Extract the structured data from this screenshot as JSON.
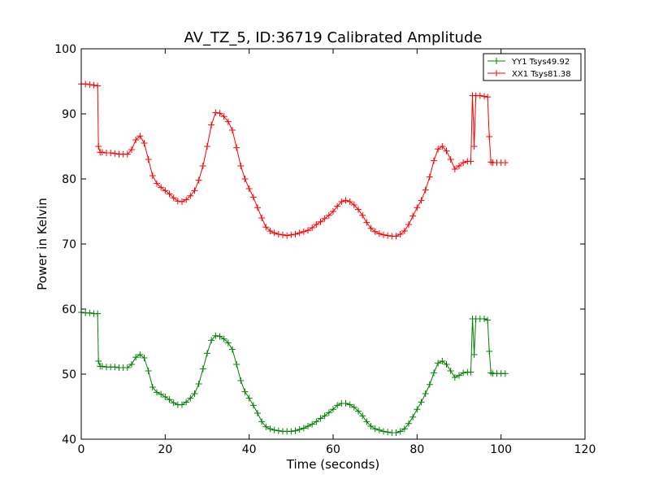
{
  "chart_data": {
    "type": "line",
    "title": "AV_TZ_5, ID:36719 Calibrated Amplitude",
    "xlabel": "Time (seconds)",
    "ylabel": "Power in Kelvin",
    "xlim": [
      0,
      120
    ],
    "ylim": [
      40,
      100
    ],
    "xticks": [
      0,
      20,
      40,
      60,
      80,
      100,
      120
    ],
    "yticks": [
      40,
      50,
      60,
      70,
      80,
      90,
      100
    ],
    "grid": false,
    "legend_position": "top-right",
    "marker": "plus",
    "series": [
      {
        "name": "YY1 Tsys49.92",
        "color": "#008000",
        "points": [
          [
            0,
            59.5
          ],
          [
            1,
            59.4
          ],
          [
            2,
            59.4
          ],
          [
            3,
            59.3
          ],
          [
            3.9,
            59.3
          ],
          [
            4.1,
            52
          ],
          [
            4.5,
            51.2
          ],
          [
            5,
            51.2
          ],
          [
            6,
            51.1
          ],
          [
            7,
            51.1
          ],
          [
            8,
            51.1
          ],
          [
            9,
            51
          ],
          [
            10,
            51
          ],
          [
            11,
            51
          ],
          [
            12,
            51.5
          ],
          [
            13,
            52.6
          ],
          [
            14,
            53
          ],
          [
            15,
            52.5
          ],
          [
            16,
            50.5
          ],
          [
            17,
            48
          ],
          [
            18,
            47.2
          ],
          [
            19,
            46.9
          ],
          [
            20,
            46.5
          ],
          [
            21,
            46.1
          ],
          [
            22,
            45.6
          ],
          [
            23,
            45.3
          ],
          [
            24,
            45.3
          ],
          [
            25,
            45.7
          ],
          [
            26,
            46.3
          ],
          [
            27,
            47
          ],
          [
            28,
            48.5
          ],
          [
            29,
            50.8
          ],
          [
            30,
            53.2
          ],
          [
            31,
            55.2
          ],
          [
            32,
            55.9
          ],
          [
            33,
            55.8
          ],
          [
            34,
            55.4
          ],
          [
            35,
            54.8
          ],
          [
            36,
            53.8
          ],
          [
            37,
            51.5
          ],
          [
            38,
            49
          ],
          [
            39,
            47.3
          ],
          [
            40,
            46.3
          ],
          [
            41,
            45.2
          ],
          [
            42,
            44
          ],
          [
            43,
            42.7
          ],
          [
            44,
            41.9
          ],
          [
            45,
            41.6
          ],
          [
            46,
            41.4
          ],
          [
            47,
            41.3
          ],
          [
            48,
            41.2
          ],
          [
            49,
            41.2
          ],
          [
            50,
            41.2
          ],
          [
            51,
            41.3
          ],
          [
            52,
            41.5
          ],
          [
            53,
            41.7
          ],
          [
            54,
            42
          ],
          [
            55,
            42.3
          ],
          [
            56,
            42.7
          ],
          [
            57,
            43.2
          ],
          [
            58,
            43.6
          ],
          [
            59,
            44.1
          ],
          [
            60,
            44.6
          ],
          [
            61,
            45.2
          ],
          [
            62,
            45.5
          ],
          [
            63,
            45.5
          ],
          [
            64,
            45.3
          ],
          [
            65,
            44.9
          ],
          [
            66,
            44.3
          ],
          [
            67,
            43.6
          ],
          [
            68,
            42.7
          ],
          [
            69,
            42
          ],
          [
            70,
            41.6
          ],
          [
            71,
            41.4
          ],
          [
            72,
            41.2
          ],
          [
            73,
            41.1
          ],
          [
            74,
            41
          ],
          [
            75,
            41
          ],
          [
            76,
            41.2
          ],
          [
            77,
            41.6
          ],
          [
            78,
            42.4
          ],
          [
            79,
            43.4
          ],
          [
            80,
            44.6
          ],
          [
            81,
            45.7
          ],
          [
            82,
            47
          ],
          [
            83,
            48.4
          ],
          [
            84,
            50.2
          ],
          [
            85,
            51.7
          ],
          [
            86,
            52
          ],
          [
            87,
            51.5
          ],
          [
            88,
            50.5
          ],
          [
            89,
            49.5
          ],
          [
            90,
            49.8
          ],
          [
            91,
            50.2
          ],
          [
            92,
            50.3
          ],
          [
            92.8,
            50.3
          ],
          [
            93.2,
            58.5
          ],
          [
            93.6,
            53
          ],
          [
            94,
            58.5
          ],
          [
            95,
            58.5
          ],
          [
            96,
            58.5
          ],
          [
            96.8,
            58.3
          ],
          [
            97.2,
            53.5
          ],
          [
            97.6,
            50.2
          ],
          [
            98,
            50.1
          ],
          [
            99,
            50.1
          ],
          [
            100,
            50.1
          ],
          [
            101,
            50.1
          ]
        ]
      },
      {
        "name": "XX1 Tsys81.38",
        "color": "#ff0000",
        "points": [
          [
            0,
            94.6
          ],
          [
            1,
            94.6
          ],
          [
            2,
            94.5
          ],
          [
            3,
            94.4
          ],
          [
            3.9,
            94.3
          ],
          [
            4.1,
            85
          ],
          [
            4.5,
            84.1
          ],
          [
            5,
            84.1
          ],
          [
            6,
            84
          ],
          [
            7,
            84
          ],
          [
            8,
            83.9
          ],
          [
            9,
            83.8
          ],
          [
            10,
            83.8
          ],
          [
            11,
            83.8
          ],
          [
            12,
            84.5
          ],
          [
            13,
            86
          ],
          [
            14,
            86.6
          ],
          [
            15,
            85.5
          ],
          [
            16,
            83
          ],
          [
            17,
            80.5
          ],
          [
            18,
            79.3
          ],
          [
            19,
            78.7
          ],
          [
            20,
            78.2
          ],
          [
            21,
            77.7
          ],
          [
            22,
            77.1
          ],
          [
            23,
            76.6
          ],
          [
            24,
            76.5
          ],
          [
            25,
            76.8
          ],
          [
            26,
            77.4
          ],
          [
            27,
            78.2
          ],
          [
            28,
            79.8
          ],
          [
            29,
            82
          ],
          [
            30,
            85
          ],
          [
            31,
            88.3
          ],
          [
            32,
            90.2
          ],
          [
            33,
            90.1
          ],
          [
            34,
            89.6
          ],
          [
            35,
            88.8
          ],
          [
            36,
            87.5
          ],
          [
            37,
            84.8
          ],
          [
            38,
            82
          ],
          [
            39,
            80
          ],
          [
            40,
            78.5
          ],
          [
            41,
            77.2
          ],
          [
            42,
            75.6
          ],
          [
            43,
            74
          ],
          [
            44,
            72.6
          ],
          [
            45,
            72
          ],
          [
            46,
            71.7
          ],
          [
            47,
            71.5
          ],
          [
            48,
            71.4
          ],
          [
            49,
            71.3
          ],
          [
            50,
            71.4
          ],
          [
            51,
            71.5
          ],
          [
            52,
            71.7
          ],
          [
            53,
            71.9
          ],
          [
            54,
            72.1
          ],
          [
            55,
            72.5
          ],
          [
            56,
            73
          ],
          [
            57,
            73.4
          ],
          [
            58,
            73.9
          ],
          [
            59,
            74.4
          ],
          [
            60,
            75
          ],
          [
            61,
            75.8
          ],
          [
            62,
            76.5
          ],
          [
            63,
            76.7
          ],
          [
            64,
            76.5
          ],
          [
            65,
            76
          ],
          [
            66,
            75.3
          ],
          [
            67,
            74.4
          ],
          [
            68,
            73.3
          ],
          [
            69,
            72.4
          ],
          [
            70,
            71.9
          ],
          [
            71,
            71.6
          ],
          [
            72,
            71.4
          ],
          [
            73,
            71.3
          ],
          [
            74,
            71.2
          ],
          [
            75,
            71.2
          ],
          [
            76,
            71.5
          ],
          [
            77,
            72
          ],
          [
            78,
            73
          ],
          [
            79,
            74.3
          ],
          [
            80,
            75.6
          ],
          [
            81,
            76.7
          ],
          [
            82,
            78.3
          ],
          [
            83,
            80.3
          ],
          [
            84,
            82.8
          ],
          [
            85,
            84.6
          ],
          [
            86,
            85
          ],
          [
            87,
            84.3
          ],
          [
            88,
            83
          ],
          [
            89,
            81.5
          ],
          [
            90,
            82
          ],
          [
            91,
            82.5
          ],
          [
            92,
            82.7
          ],
          [
            92.8,
            82.7
          ],
          [
            93.2,
            92.8
          ],
          [
            93.6,
            85
          ],
          [
            94,
            92.8
          ],
          [
            95,
            92.8
          ],
          [
            96,
            92.7
          ],
          [
            96.8,
            92.6
          ],
          [
            97.2,
            86.5
          ],
          [
            97.6,
            82.6
          ],
          [
            98,
            82.5
          ],
          [
            99,
            82.5
          ],
          [
            100,
            82.5
          ],
          [
            101,
            82.5
          ]
        ]
      }
    ]
  }
}
